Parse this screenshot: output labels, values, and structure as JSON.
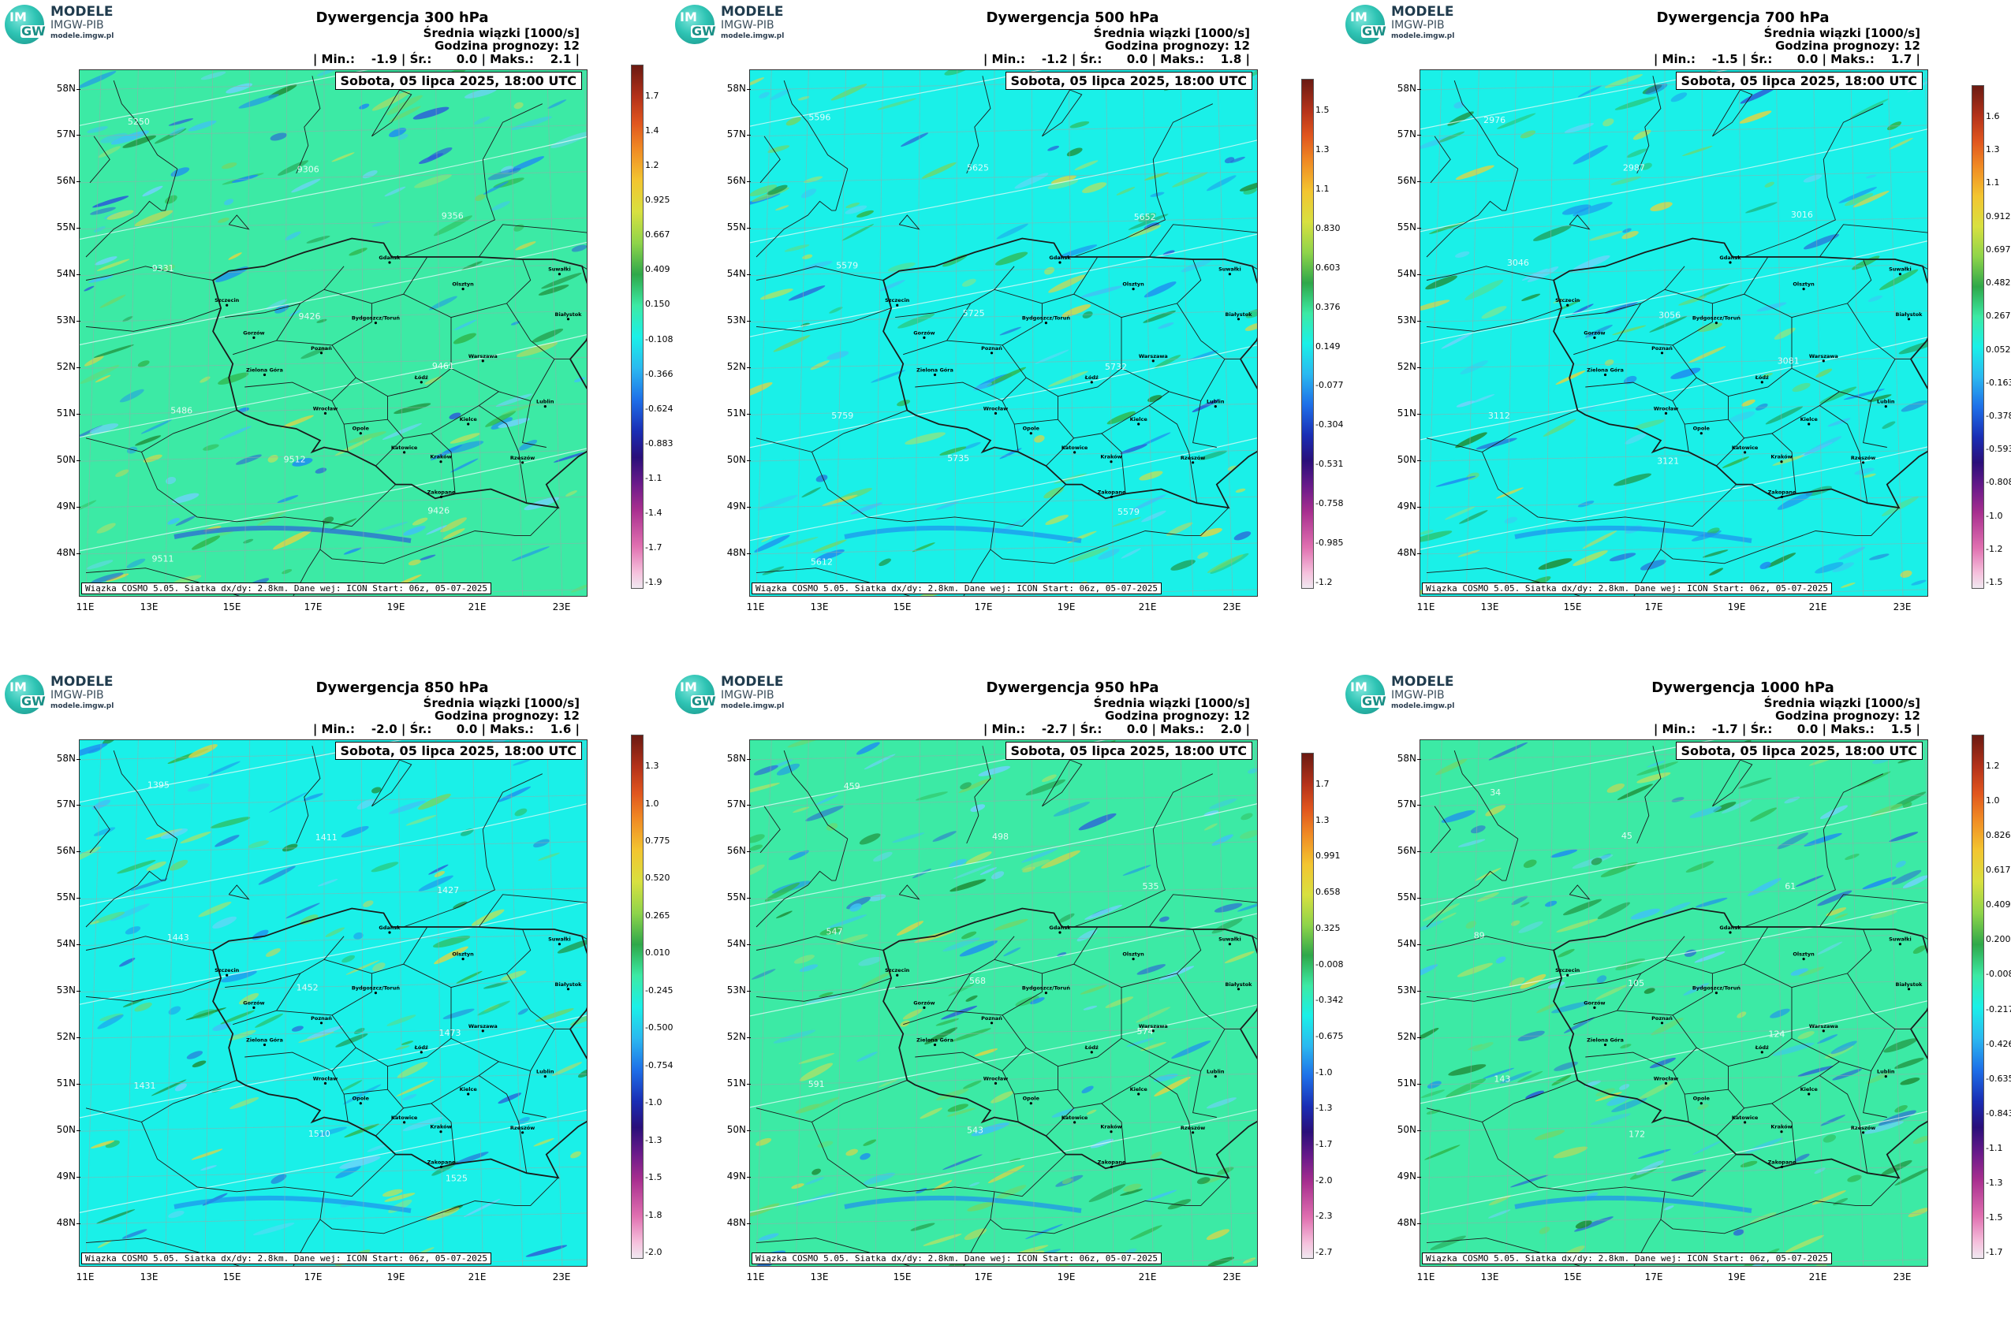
{
  "logo": {
    "line1": "MODELE",
    "line2": "IMGW-PIB",
    "line3": "modele.imgw.pl",
    "badge_top": "IM",
    "badge_bottom": "GW"
  },
  "common": {
    "subtitle": "Średnia wiązki [1000/s]",
    "forecast_hour": "Godzina prognozy: 12",
    "date": "Sobota, 05 lipca 2025, 18:00 UTC",
    "footer": "Wiązka COSMO 5.05. Siatka dx/dy: 2.8km. Dane wej: ICON Start: 06z, 05-07-2025",
    "lat_labels": [
      "58N",
      "57N",
      "56N",
      "55N",
      "54N",
      "53N",
      "52N",
      "51N",
      "50N",
      "49N",
      "48N"
    ],
    "lon_labels": [
      "11E",
      "13E",
      "15E",
      "17E",
      "19E",
      "21E",
      "23E"
    ],
    "cities": [
      "Gdańsk",
      "Olsztyn",
      "Suwałki",
      "Białystok",
      "Szczecin",
      "Bydgoszcz/Toruń",
      "Gorzów",
      "Poznań",
      "Warszawa",
      "Zielona Góra",
      "Łódź",
      "Lublin",
      "Wrocław",
      "Kielce",
      "Opole",
      "Rzeszów",
      "Katowice",
      "Kraków",
      "Zakopane"
    ]
  },
  "colors": {
    "green_bg": "#3ceaa5",
    "cyan_bg": "#1af0e8",
    "border": "#1a1a1a"
  },
  "panels": [
    {
      "title": "Dywergencja 300 hPa",
      "min": "-1.9",
      "mean": "0.0",
      "max": "2.1",
      "bg": "green",
      "colorbar": [
        "1.7",
        "1.4",
        "1.2",
        "0.925",
        "0.667",
        "0.409",
        "0.150",
        "-0.108",
        "-0.366",
        "-0.624",
        "-0.883",
        "-1.1",
        "-1.4",
        "-1.7",
        "-1.9"
      ],
      "contours": [
        "5250",
        "9306",
        "9356",
        "9331",
        "9426",
        "9461",
        "5486",
        "9512",
        "9426",
        "9511"
      ]
    },
    {
      "title": "Dywergencja 500 hPa",
      "min": "-1.2",
      "mean": "0.0",
      "max": "1.8",
      "bg": "cyan",
      "colorbar": [
        "1.5",
        "1.3",
        "1.1",
        "0.830",
        "0.603",
        "0.376",
        "0.149",
        "-0.077",
        "-0.304",
        "-0.531",
        "-0.758",
        "-0.985",
        "-1.2"
      ],
      "contours": [
        "5596",
        "5625",
        "5652",
        "5579",
        "5725",
        "5732",
        "5759",
        "5735",
        "5579",
        "5612"
      ]
    },
    {
      "title": "Dywergencja 700 hPa",
      "min": "-1.5",
      "mean": "0.0",
      "max": "1.7",
      "bg": "cyan",
      "colorbar": [
        "1.6",
        "1.3",
        "1.1",
        "0.912",
        "0.697",
        "0.482",
        "0.267",
        "0.052",
        "-0.163",
        "-0.378",
        "-0.593",
        "-0.808",
        "-1.0",
        "-1.2",
        "-1.5"
      ],
      "contours": [
        "2976",
        "2987",
        "3016",
        "3046",
        "3056",
        "3081",
        "3112",
        "3121"
      ]
    },
    {
      "title": "Dywergencja 850 hPa",
      "min": "-2.0",
      "mean": "0.0",
      "max": "1.6",
      "bg": "cyan",
      "colorbar": [
        "1.3",
        "1.0",
        "0.775",
        "0.520",
        "0.265",
        "0.010",
        "-0.245",
        "-0.500",
        "-0.754",
        "-1.0",
        "-1.3",
        "-1.5",
        "-1.8",
        "-2.0"
      ],
      "contours": [
        "1395",
        "1411",
        "1427",
        "1443",
        "1452",
        "1473",
        "1431",
        "1510",
        "1525"
      ]
    },
    {
      "title": "Dywergencja 950 hPa",
      "min": "-2.7",
      "mean": "0.0",
      "max": "2.0",
      "bg": "green",
      "colorbar": [
        "1.7",
        "1.3",
        "0.991",
        "0.658",
        "0.325",
        "-0.008",
        "-0.342",
        "-0.675",
        "-1.0",
        "-1.3",
        "-1.7",
        "-2.0",
        "-2.3",
        "-2.7"
      ],
      "contours": [
        "459",
        "498",
        "535",
        "547",
        "568",
        "574",
        "591",
        "543"
      ]
    },
    {
      "title": "Dywergencja 1000 hPa",
      "min": "-1.7",
      "mean": "0.0",
      "max": "1.5",
      "bg": "green",
      "colorbar": [
        "1.2",
        "1.0",
        "0.826",
        "0.617",
        "0.409",
        "0.200",
        "-0.008",
        "-0.217",
        "-0.426",
        "-0.635",
        "-0.843",
        "-1.1",
        "-1.3",
        "-1.5",
        "-1.7"
      ],
      "contours": [
        "34",
        "45",
        "61",
        "89",
        "105",
        "124",
        "143",
        "172"
      ]
    }
  ]
}
